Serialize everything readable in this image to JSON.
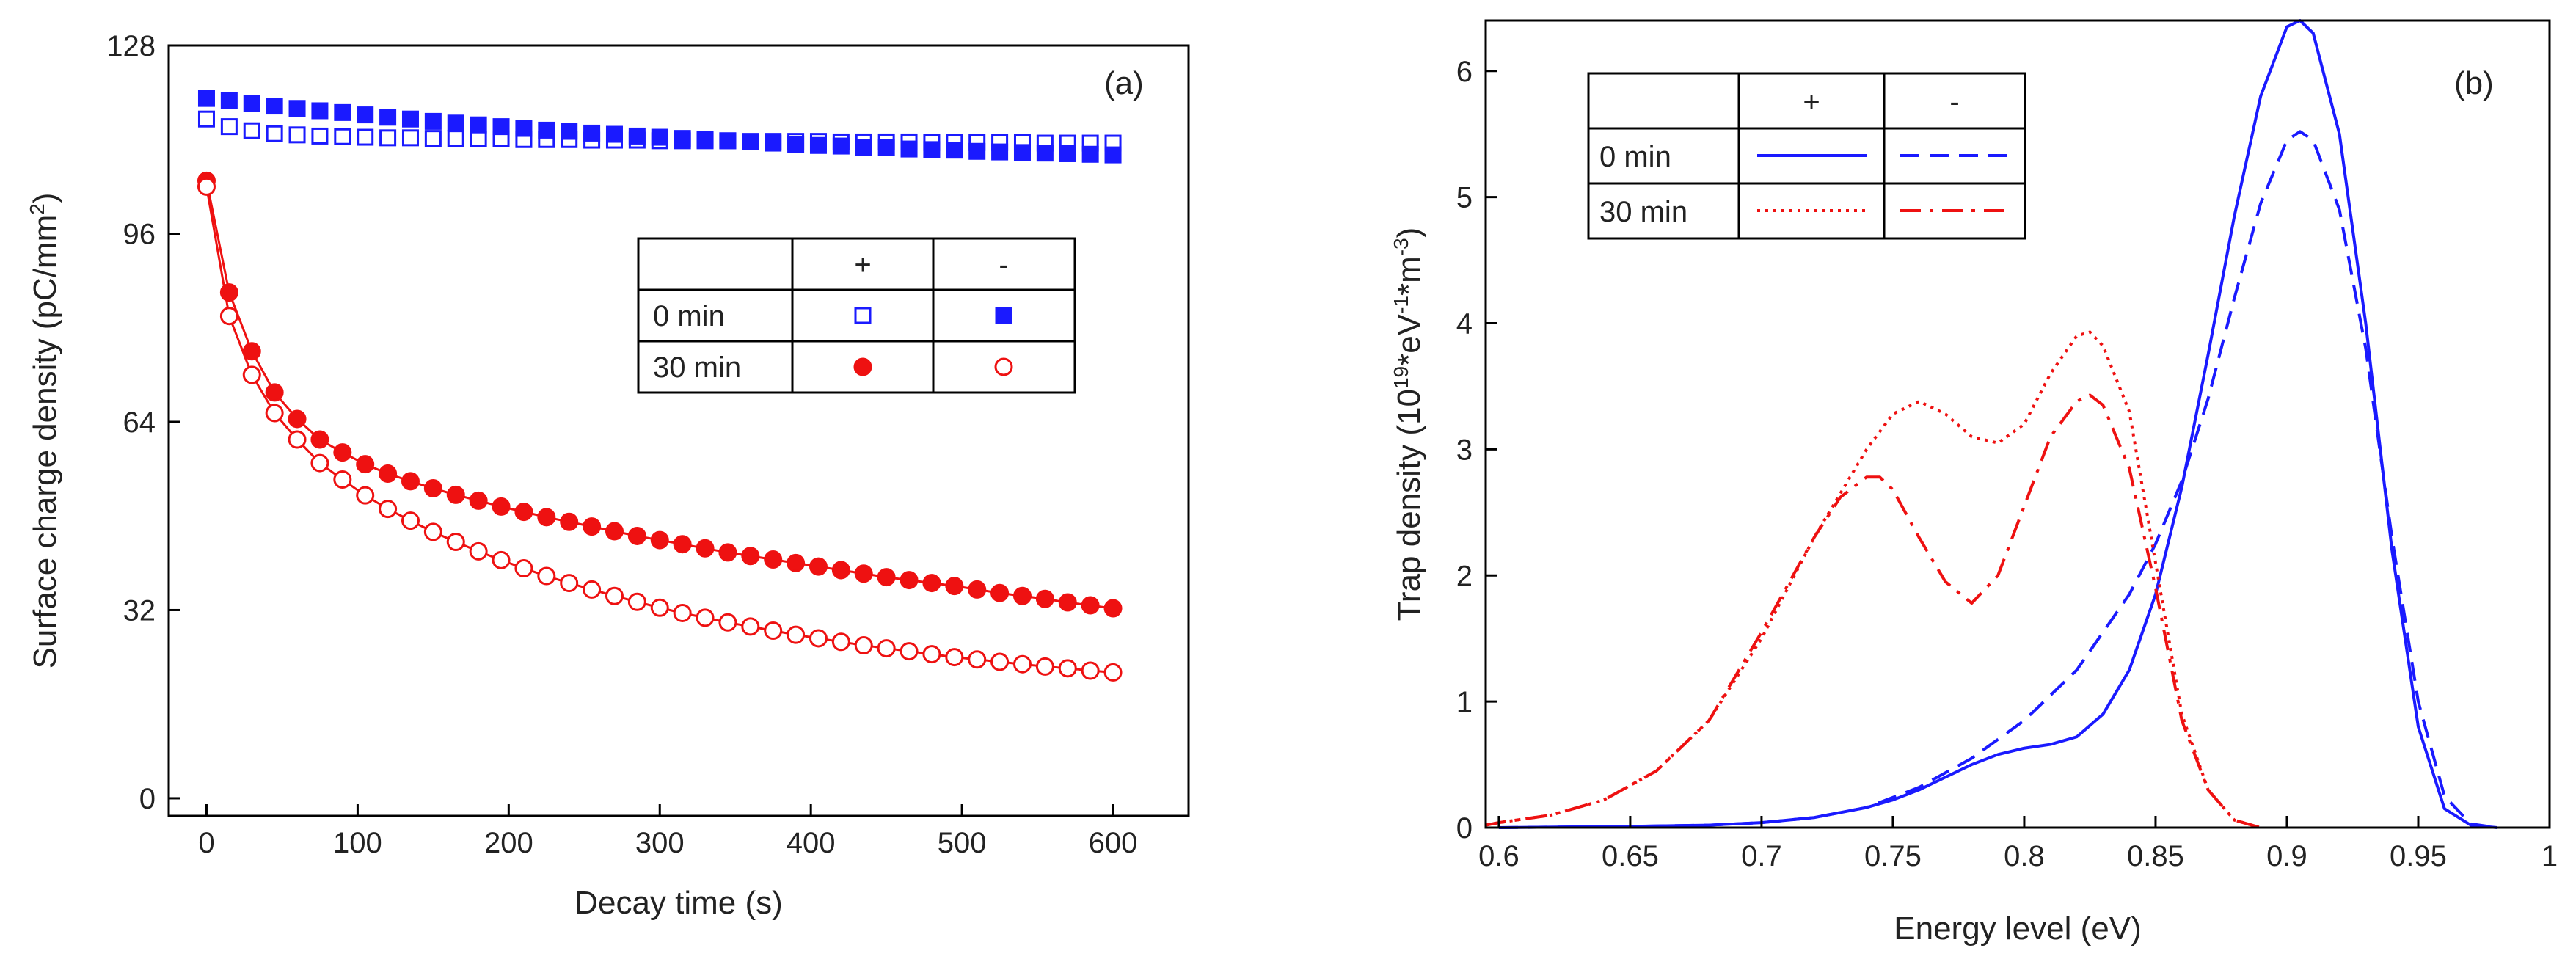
{
  "chart_data": [
    {
      "type": "scatter",
      "panel_label": "(a)",
      "xlabel": "Decay time (s)",
      "ylabel_main": "Surface charge density (pC/mm",
      "ylabel_sup": "2",
      "ylabel_tail": ")",
      "xlim": [
        -25,
        650
      ],
      "ylim": [
        -3,
        128
      ],
      "xticks": [
        0,
        100,
        200,
        300,
        400,
        500,
        600
      ],
      "yticks": [
        0,
        32,
        64,
        96,
        128
      ],
      "legend": {
        "header": [
          "",
          "+",
          "-"
        ],
        "rows": [
          {
            "label": "0 min",
            "plus_series": "0 min +",
            "minus_series": "0 min -"
          },
          {
            "label": "30 min",
            "plus_series": "30 min +",
            "minus_series": "30 min -"
          }
        ]
      },
      "series": [
        {
          "name": "0 min +",
          "color": "#1a1aff",
          "marker": "square-open",
          "connect": false,
          "x": [
            0,
            15,
            30,
            45,
            60,
            75,
            90,
            105,
            120,
            135,
            150,
            165,
            180,
            195,
            210,
            225,
            240,
            255,
            270,
            285,
            300,
            315,
            330,
            345,
            360,
            375,
            390,
            405,
            420,
            435,
            450,
            465,
            480,
            495,
            510,
            525,
            540,
            555,
            570,
            585,
            600
          ],
          "y": [
            115.5,
            114.2,
            113.5,
            113.0,
            112.8,
            112.6,
            112.5,
            112.4,
            112.3,
            112.3,
            112.2,
            112.2,
            112.1,
            112.1,
            112.0,
            112.0,
            112.0,
            111.9,
            111.9,
            111.9,
            111.8,
            111.8,
            111.8,
            111.8,
            111.7,
            111.7,
            111.7,
            111.7,
            111.6,
            111.6,
            111.6,
            111.6,
            111.5,
            111.5,
            111.5,
            111.5,
            111.5,
            111.4,
            111.4,
            111.4,
            111.4
          ]
        },
        {
          "name": "0 min -",
          "color": "#1a1aff",
          "marker": "square-filled",
          "connect": false,
          "x": [
            0,
            15,
            30,
            45,
            60,
            75,
            90,
            105,
            120,
            135,
            150,
            165,
            180,
            195,
            210,
            225,
            240,
            255,
            270,
            285,
            300,
            315,
            330,
            345,
            360,
            375,
            390,
            405,
            420,
            435,
            450,
            465,
            480,
            495,
            510,
            525,
            540,
            555,
            570,
            585,
            600
          ],
          "y": [
            119.0,
            118.6,
            118.1,
            117.7,
            117.3,
            116.9,
            116.6,
            116.2,
            115.8,
            115.5,
            115.1,
            114.8,
            114.5,
            114.2,
            113.9,
            113.6,
            113.4,
            113.1,
            112.9,
            112.6,
            112.4,
            112.2,
            112.0,
            111.8,
            111.6,
            111.4,
            111.2,
            111.0,
            110.9,
            110.7,
            110.6,
            110.4,
            110.3,
            110.2,
            110.0,
            109.9,
            109.8,
            109.7,
            109.6,
            109.5,
            109.4
          ]
        },
        {
          "name": "30 min +",
          "color": "#ee1111",
          "marker": "circle-filled",
          "connect": true,
          "x": [
            0,
            15,
            30,
            45,
            60,
            75,
            90,
            105,
            120,
            135,
            150,
            165,
            180,
            195,
            210,
            225,
            240,
            255,
            270,
            285,
            300,
            315,
            330,
            345,
            360,
            375,
            390,
            405,
            420,
            435,
            450,
            465,
            480,
            495,
            510,
            525,
            540,
            555,
            570,
            585,
            600
          ],
          "y": [
            105.0,
            86.0,
            76.0,
            69.0,
            64.5,
            61.0,
            58.8,
            56.8,
            55.2,
            53.9,
            52.7,
            51.6,
            50.6,
            49.6,
            48.7,
            47.8,
            47.0,
            46.2,
            45.4,
            44.6,
            43.9,
            43.2,
            42.5,
            41.8,
            41.2,
            40.6,
            40.0,
            39.4,
            38.8,
            38.2,
            37.6,
            37.1,
            36.6,
            36.1,
            35.5,
            34.9,
            34.4,
            33.9,
            33.3,
            32.8,
            32.3
          ]
        },
        {
          "name": "30 min -",
          "color": "#ee1111",
          "marker": "circle-open",
          "connect": true,
          "x": [
            0,
            15,
            30,
            45,
            60,
            75,
            90,
            105,
            120,
            135,
            150,
            165,
            180,
            195,
            210,
            225,
            240,
            255,
            270,
            285,
            300,
            315,
            330,
            345,
            360,
            375,
            390,
            405,
            420,
            435,
            450,
            465,
            480,
            495,
            510,
            525,
            540,
            555,
            570,
            585,
            600
          ],
          "y": [
            104.0,
            82.0,
            72.0,
            65.5,
            61.0,
            57.0,
            54.2,
            51.5,
            49.2,
            47.2,
            45.3,
            43.6,
            42.0,
            40.5,
            39.1,
            37.8,
            36.6,
            35.5,
            34.4,
            33.4,
            32.4,
            31.5,
            30.7,
            29.9,
            29.2,
            28.5,
            27.8,
            27.2,
            26.6,
            26.0,
            25.5,
            25.0,
            24.5,
            24.0,
            23.6,
            23.2,
            22.8,
            22.4,
            22.1,
            21.7,
            21.4
          ]
        }
      ]
    },
    {
      "type": "line",
      "panel_label": "(b)",
      "xlabel": "Energy level (eV)",
      "ylabel_parts": [
        "Trap density (10",
        "19",
        "*eV",
        "-1",
        "*m",
        "-3",
        ")"
      ],
      "xlim": [
        0.595,
        1.0
      ],
      "ylim": [
        0,
        6.4
      ],
      "xticks": [
        0.6,
        0.65,
        0.7,
        0.75,
        0.8,
        0.85,
        0.9,
        0.95,
        1.0
      ],
      "xtick_labels": [
        "0.6",
        "0.65",
        "0.7",
        "0.75",
        "0.8",
        "0.85",
        "0.9",
        "0.95",
        "1"
      ],
      "yticks": [
        0,
        1,
        2,
        3,
        4,
        5,
        6
      ],
      "legend": {
        "header": [
          "",
          "+",
          "-"
        ],
        "rows": [
          {
            "label": "0 min",
            "plus_series": "0 min +",
            "minus_series": "0 min -"
          },
          {
            "label": "30 min",
            "plus_series": "30 min +",
            "minus_series": "30 min -"
          }
        ]
      },
      "series": [
        {
          "name": "0 min +",
          "color": "#1a1aff",
          "dash": "solid",
          "x": [
            0.6,
            0.65,
            0.68,
            0.7,
            0.72,
            0.74,
            0.75,
            0.76,
            0.77,
            0.78,
            0.79,
            0.8,
            0.81,
            0.82,
            0.83,
            0.84,
            0.85,
            0.86,
            0.87,
            0.88,
            0.89,
            0.9,
            0.905,
            0.91,
            0.92,
            0.93,
            0.94,
            0.95,
            0.96,
            0.97,
            0.98
          ],
          "y": [
            0,
            0.01,
            0.02,
            0.04,
            0.08,
            0.16,
            0.22,
            0.3,
            0.4,
            0.5,
            0.58,
            0.63,
            0.66,
            0.72,
            0.9,
            1.25,
            1.85,
            2.7,
            3.75,
            4.85,
            5.8,
            6.35,
            6.4,
            6.3,
            5.5,
            4.0,
            2.2,
            0.8,
            0.15,
            0.02,
            0
          ]
        },
        {
          "name": "0 min -",
          "color": "#1a1aff",
          "dash": "dashed",
          "x": [
            0.6,
            0.65,
            0.68,
            0.7,
            0.72,
            0.74,
            0.76,
            0.78,
            0.8,
            0.82,
            0.84,
            0.85,
            0.86,
            0.87,
            0.88,
            0.89,
            0.9,
            0.905,
            0.91,
            0.92,
            0.93,
            0.94,
            0.95,
            0.96,
            0.97,
            0.98
          ],
          "y": [
            0,
            0.01,
            0.02,
            0.04,
            0.08,
            0.16,
            0.32,
            0.55,
            0.85,
            1.25,
            1.85,
            2.25,
            2.75,
            3.4,
            4.2,
            4.95,
            5.45,
            5.52,
            5.45,
            4.9,
            3.8,
            2.3,
            1.0,
            0.25,
            0.03,
            0
          ]
        },
        {
          "name": "30 min +",
          "color": "#ee1111",
          "dash": "dotted",
          "x": [
            0.595,
            0.6,
            0.62,
            0.64,
            0.66,
            0.68,
            0.7,
            0.72,
            0.74,
            0.75,
            0.76,
            0.77,
            0.78,
            0.79,
            0.8,
            0.81,
            0.82,
            0.825,
            0.83,
            0.84,
            0.85,
            0.86,
            0.87,
            0.88,
            0.89
          ],
          "y": [
            0.02,
            0.04,
            0.1,
            0.22,
            0.45,
            0.85,
            1.5,
            2.3,
            3.0,
            3.28,
            3.38,
            3.28,
            3.1,
            3.05,
            3.2,
            3.6,
            3.9,
            3.93,
            3.82,
            3.3,
            2.1,
            0.9,
            0.3,
            0.06,
            0
          ]
        },
        {
          "name": "30 min -",
          "color": "#ee1111",
          "dash": "dashdot",
          "x": [
            0.595,
            0.6,
            0.62,
            0.64,
            0.66,
            0.68,
            0.7,
            0.72,
            0.73,
            0.74,
            0.745,
            0.75,
            0.76,
            0.77,
            0.78,
            0.79,
            0.8,
            0.81,
            0.82,
            0.825,
            0.83,
            0.84,
            0.85,
            0.86,
            0.87,
            0.88,
            0.89
          ],
          "y": [
            0.02,
            0.04,
            0.1,
            0.22,
            0.45,
            0.85,
            1.55,
            2.3,
            2.62,
            2.78,
            2.78,
            2.68,
            2.3,
            1.95,
            1.78,
            2.0,
            2.55,
            3.1,
            3.38,
            3.43,
            3.35,
            2.85,
            1.9,
            0.85,
            0.3,
            0.06,
            0
          ]
        }
      ]
    }
  ]
}
